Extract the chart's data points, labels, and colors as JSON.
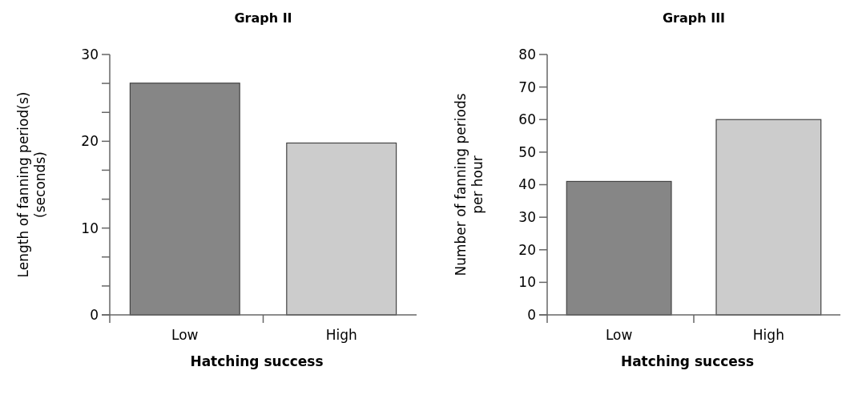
{
  "chart_data": [
    {
      "type": "bar",
      "title": "Graph II",
      "xlabel": "Hatching success",
      "ylabel": "Length of fanning period(s)\n(seconds)",
      "categories": [
        "Low",
        "High"
      ],
      "values": [
        26.7,
        19.8
      ],
      "colors": [
        "#868686",
        "#cccccc"
      ],
      "ylim": [
        0,
        30
      ],
      "yticks": [
        0,
        {
          "value": 3.33,
          "label": null
        },
        {
          "value": 6.67,
          "label": null
        },
        10,
        {
          "value": 13.33,
          "label": null
        },
        {
          "value": 16.67,
          "label": null
        },
        20,
        {
          "value": 23.33,
          "label": null
        },
        {
          "value": 26.67,
          "label": null
        },
        30
      ],
      "grid": false
    },
    {
      "type": "bar",
      "title": "Graph III",
      "xlabel": "Hatching success",
      "ylabel": "Number of fanning periods\nper hour",
      "categories": [
        "Low",
        "High"
      ],
      "values": [
        41,
        60
      ],
      "colors": [
        "#868686",
        "#cccccc"
      ],
      "ylim": [
        0,
        80
      ],
      "yticks": [
        0,
        10,
        20,
        30,
        40,
        50,
        60,
        70,
        80
      ],
      "grid": false
    }
  ]
}
